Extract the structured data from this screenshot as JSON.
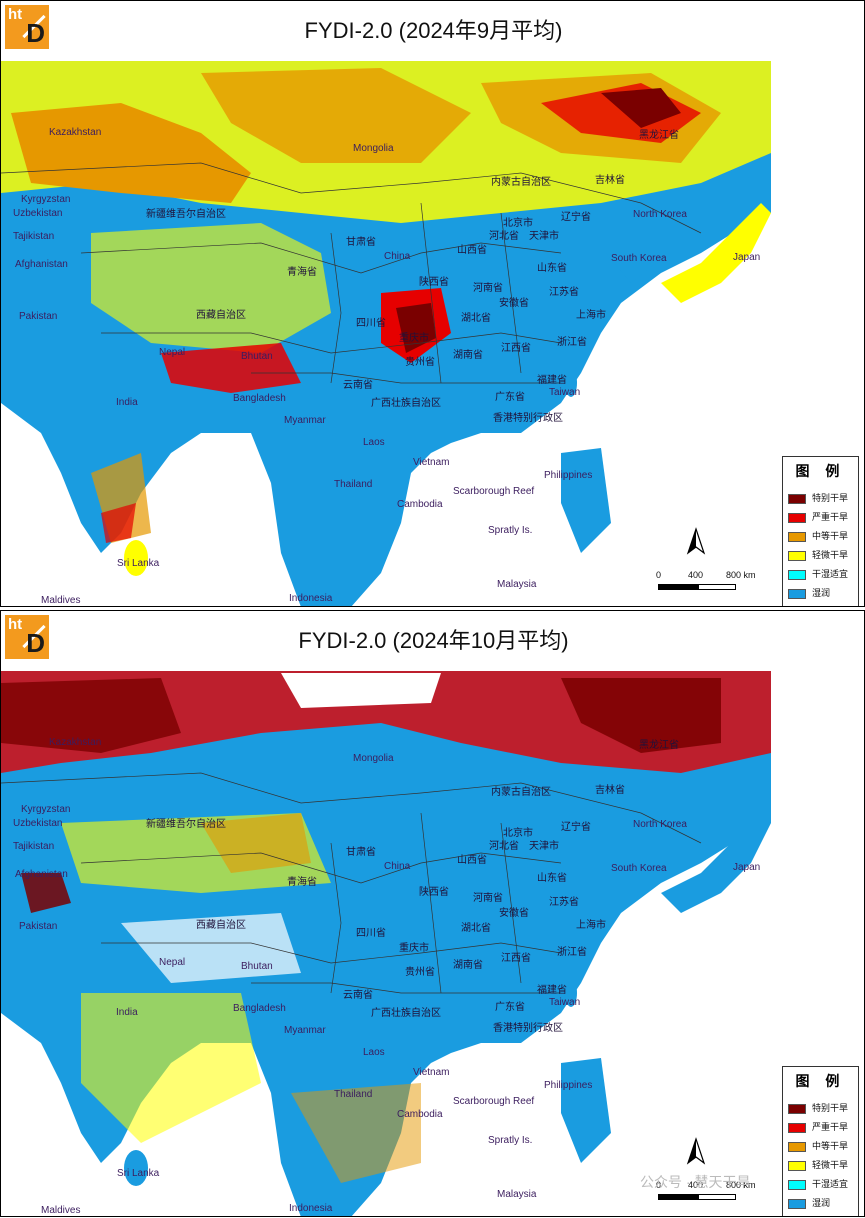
{
  "panels": [
    {
      "title": "FYDI-2.0 (2024年9月平均)",
      "logo": {
        "top": "ht",
        "bottom": "D"
      },
      "legend": {
        "title": "图 例",
        "items": [
          {
            "label": "特别干旱",
            "color": "#7a0000"
          },
          {
            "label": "严重干旱",
            "color": "#e60000"
          },
          {
            "label": "中等干旱",
            "color": "#e69800"
          },
          {
            "label": "轻微干旱",
            "color": "#ffff00"
          },
          {
            "label": "干湿适宜",
            "color": "#00ffff"
          },
          {
            "label": "湿润",
            "color": "#1a9ce0"
          }
        ]
      },
      "scale": {
        "labels": [
          "0",
          "400",
          "800 km"
        ]
      },
      "north_icon": "north-arrow-icon"
    },
    {
      "title": "FYDI-2.0 (2024年10月平均)",
      "logo": {
        "top": "ht",
        "bottom": "D"
      },
      "legend": {
        "title": "图 例",
        "items": [
          {
            "label": "特别干旱",
            "color": "#7a0000"
          },
          {
            "label": "严重干旱",
            "color": "#e60000"
          },
          {
            "label": "中等干旱",
            "color": "#e69800"
          },
          {
            "label": "轻微干旱",
            "color": "#ffff00"
          },
          {
            "label": "干湿适宜",
            "color": "#00ffff"
          },
          {
            "label": "湿润",
            "color": "#1a9ce0"
          }
        ]
      },
      "scale": {
        "labels": [
          "0",
          "400",
          "800 km"
        ]
      },
      "north_icon": "north-arrow-icon"
    }
  ],
  "place_labels": [
    "Kazakhstan",
    "Mongolia",
    "黑龙江省",
    "吉林省",
    "内蒙古自治区",
    "Kyrgyzstan",
    "Uzbekistan",
    "新疆维吾尔自治区",
    "North Korea",
    "辽宁省",
    "北京市",
    "河北省",
    "天津市",
    "甘肃省",
    "山西省",
    "Tajikistan",
    "China",
    "山东省",
    "South Korea",
    "Japan",
    "Afghanistan",
    "青海省",
    "陕西省",
    "河南省",
    "江苏省",
    "安徽省",
    "上海市",
    "Pakistan",
    "西藏自治区",
    "四川省",
    "湖北省",
    "重庆市",
    "浙江省",
    "Nepal",
    "Bhutan",
    "湖南省",
    "江西省",
    "贵州省",
    "福建省",
    "云南省",
    "Taiwan",
    "India",
    "Bangladesh",
    "广西壮族自治区",
    "广东省",
    "香港特别行政区",
    "Myanmar",
    "Laos",
    "Vietnam",
    "Philippines",
    "Thailand",
    "Scarborough Reef",
    "Cambodia",
    "Spratly Is.",
    "Sri Lanka",
    "Malaysia",
    "Maldives",
    "Indonesia"
  ],
  "watermark": "公众号 · 慧天干旱"
}
